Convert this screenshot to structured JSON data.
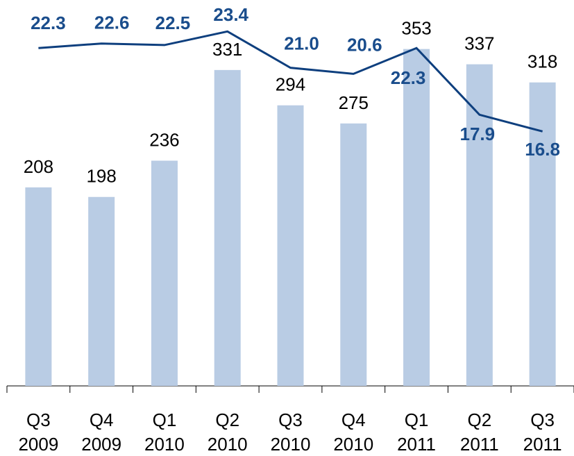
{
  "chart_data": {
    "type": "bar-line",
    "categories": [
      [
        "Q3",
        "2009"
      ],
      [
        "Q4",
        "2009"
      ],
      [
        "Q1",
        "2010"
      ],
      [
        "Q2",
        "2010"
      ],
      [
        "Q3",
        "2010"
      ],
      [
        "Q4",
        "2010"
      ],
      [
        "Q1",
        "2011"
      ],
      [
        "Q2",
        "2011"
      ],
      [
        "Q3",
        "2011"
      ]
    ],
    "series": [
      {
        "type": "bar",
        "color": "#b9cce4",
        "values": [
          208,
          198,
          236,
          331,
          294,
          275,
          353,
          337,
          318
        ]
      },
      {
        "type": "line",
        "axis": "y2",
        "color": "#0e3f7e",
        "values": [
          22.3,
          22.6,
          22.5,
          23.4,
          21.0,
          20.6,
          22.3,
          17.9,
          16.8
        ],
        "value_labels": [
          "22.3",
          "22.6",
          "22.5",
          "23.4",
          "21.0",
          "20.6",
          "22.3",
          "17.9",
          "16.8"
        ]
      }
    ],
    "ylim": [
      0,
      400
    ],
    "y2lim": [
      0,
      25.2
    ]
  }
}
